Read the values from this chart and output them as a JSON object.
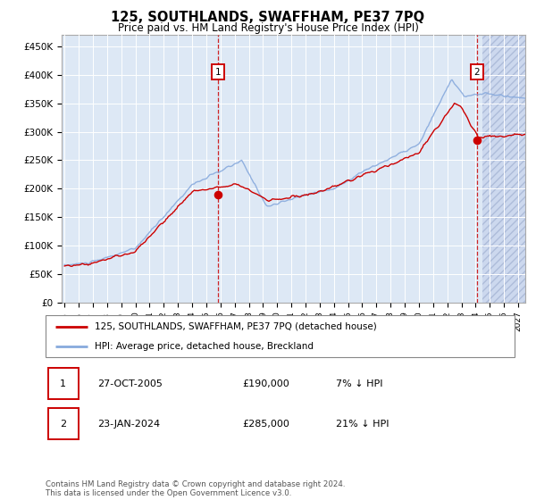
{
  "title": "125, SOUTHLANDS, SWAFFHAM, PE37 7PQ",
  "subtitle": "Price paid vs. HM Land Registry's House Price Index (HPI)",
  "legend_line1": "125, SOUTHLANDS, SWAFFHAM, PE37 7PQ (detached house)",
  "legend_line2": "HPI: Average price, detached house, Breckland",
  "annotation1_date": "27-OCT-2005",
  "annotation1_price": "£190,000",
  "annotation1_hpi": "7% ↓ HPI",
  "annotation2_date": "23-JAN-2024",
  "annotation2_price": "£285,000",
  "annotation2_hpi": "21% ↓ HPI",
  "footer": "Contains HM Land Registry data © Crown copyright and database right 2024.\nThis data is licensed under the Open Government Licence v3.0.",
  "y_ticks": [
    0,
    50000,
    100000,
    150000,
    200000,
    250000,
    300000,
    350000,
    400000,
    450000
  ],
  "y_tick_labels": [
    "£0",
    "£50K",
    "£100K",
    "£150K",
    "£200K",
    "£250K",
    "£300K",
    "£350K",
    "£400K",
    "£450K"
  ],
  "hpi_color": "#88aadd",
  "price_color": "#cc0000",
  "dot_color": "#cc0000",
  "bg_color": "#dde8f5",
  "annotation_box_color": "#cc0000",
  "sale1_x": 2005.833,
  "sale1_y": 190000,
  "sale2_x": 2024.083,
  "sale2_y": 285000,
  "hatch_start": 2024.5,
  "xmin": 1994.8,
  "xmax": 2027.5,
  "ymin": 0,
  "ymax": 470000
}
